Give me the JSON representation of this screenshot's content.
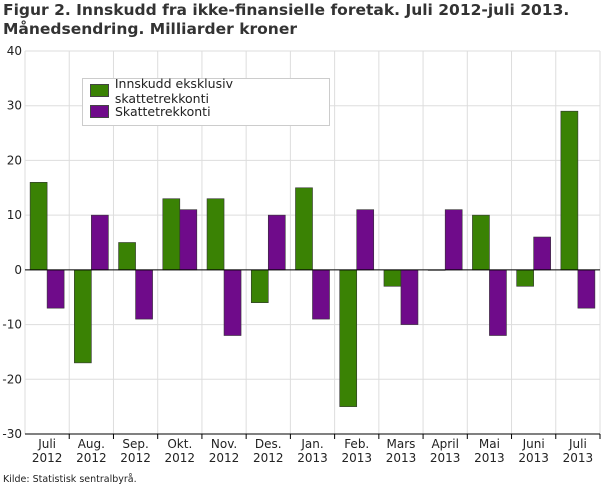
{
  "title_line1": "Figur 2. Innskudd fra ikke-finansielle foretak. Juli 2012-juli 2013.",
  "title_line2": "Månedsendring. Milliarder kroner",
  "source": "Kilde: Statistisk sentralbyrå.",
  "chart_data": {
    "type": "bar",
    "title": "Figur 2. Innskudd fra ikke-finansielle foretak. Juli 2012-juli 2013. Månedsendring. Milliarder kroner",
    "categories": [
      [
        "Juli",
        "2012"
      ],
      [
        "Aug.",
        "2012"
      ],
      [
        "Sep.",
        "2012"
      ],
      [
        "Okt.",
        "2012"
      ],
      [
        "Nov.",
        "2012"
      ],
      [
        "Des.",
        "2012"
      ],
      [
        "Jan.",
        "2013"
      ],
      [
        "Feb.",
        "2013"
      ],
      [
        "Mars",
        "2013"
      ],
      [
        "April",
        "2013"
      ],
      [
        "Mai",
        "2013"
      ],
      [
        "Juni",
        "2013"
      ],
      [
        "Juli",
        "2013"
      ]
    ],
    "series": [
      {
        "name": "Innskudd eksklusiv skattetrekkonti",
        "color": "#3a8204",
        "values": [
          16,
          -17,
          5,
          13,
          13,
          -6,
          15,
          -25,
          -3,
          0,
          10,
          -3,
          29
        ]
      },
      {
        "name": "Skattetrekkonti",
        "color": "#6f0b8a",
        "values": [
          -7,
          10,
          -9,
          11,
          -12,
          10,
          -9,
          11,
          -10,
          11,
          -12,
          6,
          -7
        ]
      }
    ],
    "ylim": [
      -30,
      40
    ],
    "yticks": [
      -30,
      -20,
      -10,
      0,
      10,
      20,
      30,
      40
    ],
    "grid": true,
    "legend": "top-left"
  }
}
